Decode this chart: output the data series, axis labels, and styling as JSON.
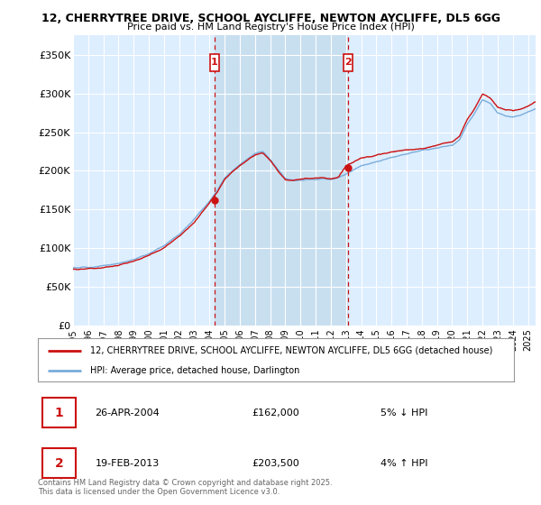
{
  "title_line1": "12, CHERRYTREE DRIVE, SCHOOL AYCLIFFE, NEWTON AYCLIFFE, DL5 6GG",
  "title_line2": "Price paid vs. HM Land Registry's House Price Index (HPI)",
  "yticks": [
    0,
    50000,
    100000,
    150000,
    200000,
    250000,
    300000,
    350000
  ],
  "ytick_labels": [
    "£0",
    "£50K",
    "£100K",
    "£150K",
    "£200K",
    "£250K",
    "£300K",
    "£350K"
  ],
  "hpi_color": "#7aaddb",
  "price_color": "#cc1111",
  "marker1_date": 2004.32,
  "marker1_price": 162000,
  "marker2_date": 2013.13,
  "marker2_price": 203500,
  "legend_line1": "12, CHERRYTREE DRIVE, SCHOOL AYCLIFFE, NEWTON AYCLIFFE, DL5 6GG (detached house)",
  "legend_line2": "HPI: Average price, detached house, Darlington",
  "footnote": "Contains HM Land Registry data © Crown copyright and database right 2025.\nThis data is licensed under the Open Government Licence v3.0.",
  "xmin": 1995,
  "xmax": 2025.5,
  "ymin": 0,
  "ymax": 375000,
  "vline_color": "#cc1111",
  "background_color": "#ddeeff",
  "shade_color": "#c8dff0",
  "grid_color": "#ffffff"
}
